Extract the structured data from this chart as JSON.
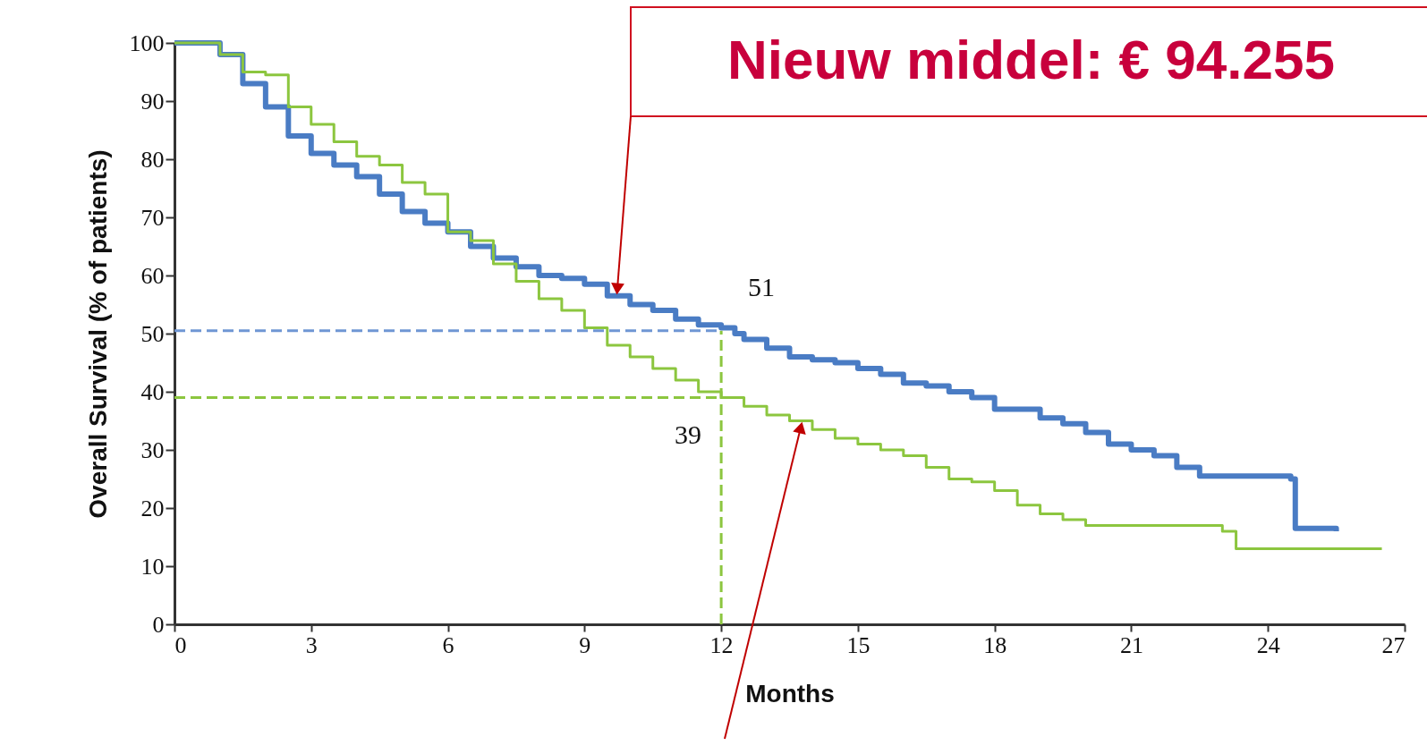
{
  "chart_data": {
    "type": "step",
    "xlabel": "Months",
    "ylabel": "Overall Survival (% of patients)",
    "xlim": [
      0,
      27
    ],
    "xticks": [
      0,
      3,
      6,
      9,
      12,
      15,
      18,
      21,
      24,
      27
    ],
    "ylim": [
      0,
      100
    ],
    "yticks": [
      0,
      10,
      20,
      30,
      40,
      50,
      60,
      70,
      80,
      90,
      100
    ],
    "annotations": [
      "Nieuw middel: € 94.255"
    ],
    "ref_lines": [
      {
        "axis": "y",
        "value": 50.5,
        "label": "51",
        "color": "#6f96d4",
        "line_style": "dashed"
      },
      {
        "axis": "y",
        "value": 39,
        "label": "39",
        "color": "#8cc63f",
        "line_style": "dashed"
      },
      {
        "axis": "x",
        "value": 12,
        "color": "#8cc63f",
        "line_style": "dashed"
      }
    ],
    "series": [
      {
        "color": "#4a7cc4",
        "x": [
          0,
          0.5,
          1,
          1.5,
          2,
          2.5,
          3,
          3.5,
          4,
          4.5,
          5,
          5.5,
          6,
          6.5,
          7,
          7.5,
          8,
          8.5,
          9,
          9.5,
          10,
          10.5,
          11,
          11.5,
          12,
          12.3,
          12.5,
          13,
          13.5,
          14,
          14.5,
          15,
          15.5,
          16,
          16.5,
          17,
          17.5,
          18,
          18.5,
          19,
          19.5,
          20,
          20.5,
          21,
          21.5,
          22,
          22.5,
          23,
          24,
          24.5,
          24.6,
          25,
          25.5
        ],
        "values": [
          100,
          100,
          98,
          93,
          89,
          84,
          81,
          79,
          77,
          74,
          71,
          69,
          67.5,
          65,
          63,
          61.5,
          60,
          59.5,
          58.5,
          56.5,
          55,
          54,
          52.5,
          51.5,
          51,
          50,
          49,
          47.5,
          46,
          45.5,
          45,
          44,
          43,
          41.5,
          41,
          40,
          39,
          37,
          37,
          35.5,
          34.5,
          33,
          31,
          30,
          29,
          27,
          25.5,
          25.5,
          25.5,
          25,
          16.5,
          16.5,
          16
        ]
      },
      {
        "color": "#8cc63f",
        "x": [
          0,
          1,
          1.5,
          2,
          2.5,
          3,
          3.5,
          4,
          4.5,
          5,
          5.5,
          6,
          6.5,
          7,
          7.5,
          8,
          8.5,
          9,
          9.5,
          10,
          10.5,
          11,
          11.5,
          12,
          12.5,
          13,
          13.5,
          14,
          14.5,
          15,
          15.5,
          16,
          16.5,
          17,
          17.5,
          18,
          18.5,
          19,
          19.5,
          20,
          21,
          22,
          23,
          23.3,
          24,
          25,
          26.5
        ],
        "values": [
          100,
          98,
          95,
          94.5,
          89,
          86,
          83,
          80.5,
          79,
          76,
          74,
          67.5,
          66,
          62,
          59,
          56,
          54,
          51,
          48,
          46,
          44,
          42,
          40,
          39,
          37.5,
          36,
          35,
          33.5,
          32,
          31,
          30,
          29,
          27,
          25,
          24.5,
          23,
          20.5,
          19,
          18,
          17,
          17,
          17,
          16,
          13,
          13,
          13,
          13
        ]
      }
    ]
  }
}
